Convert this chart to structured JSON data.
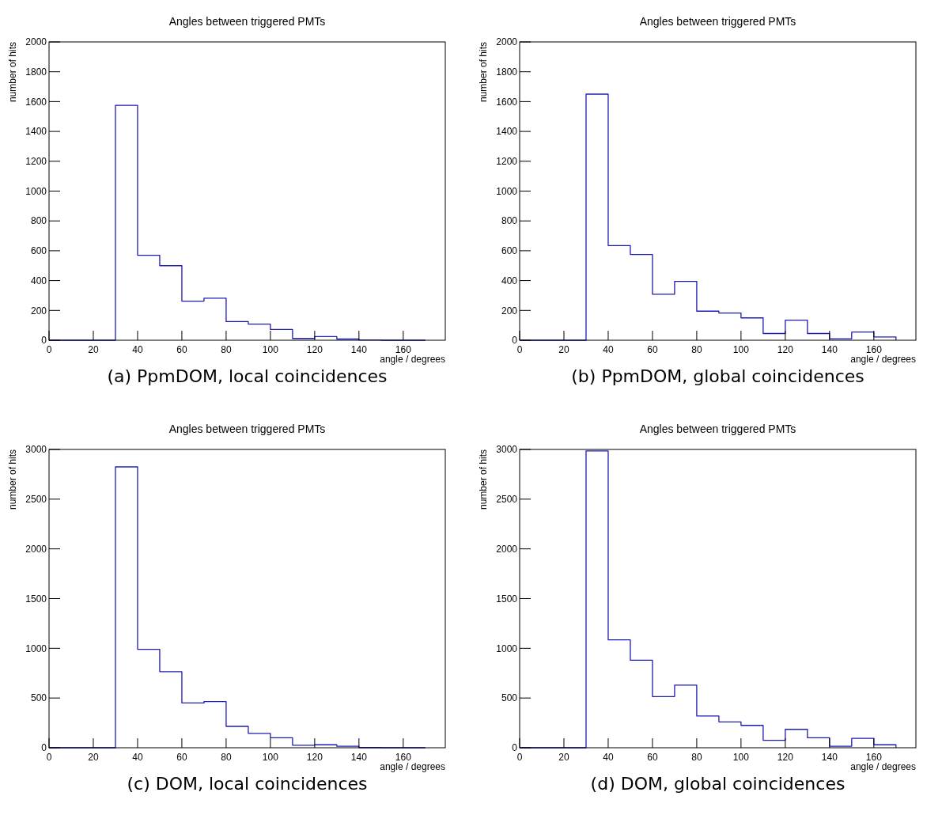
{
  "chart_data": [
    {
      "type": "histogram",
      "title": "Angles between triggered PMTs",
      "xlabel": "angle / degrees",
      "ylabel": "number of hits",
      "bins": [
        0,
        10,
        20,
        30,
        40,
        50,
        60,
        70,
        80,
        90,
        100,
        110,
        120,
        130,
        140,
        150,
        160,
        170
      ],
      "values": [
        0,
        0,
        0,
        1575,
        570,
        500,
        262,
        282,
        125,
        108,
        72,
        12,
        25,
        8,
        2,
        0,
        0
      ],
      "color": "#1c1cb4",
      "xlim": [
        0,
        179
      ],
      "xticks": [
        0,
        20,
        40,
        60,
        80,
        100,
        120,
        140,
        160
      ],
      "ylim": [
        0,
        2000
      ],
      "yticks": [
        0,
        200,
        400,
        600,
        800,
        1000,
        1200,
        1400,
        1600,
        1800,
        2000
      ],
      "grid": false,
      "annotations": [
        "(a) PpmDOM, local coincidences"
      ]
    },
    {
      "type": "histogram",
      "title": "Angles between triggered PMTs",
      "xlabel": "angle / degrees",
      "ylabel": "number of hits",
      "bins": [
        0,
        10,
        20,
        30,
        40,
        50,
        60,
        70,
        80,
        90,
        100,
        110,
        120,
        130,
        140,
        150,
        160,
        170
      ],
      "values": [
        0,
        0,
        0,
        1650,
        635,
        575,
        308,
        395,
        195,
        182,
        150,
        45,
        135,
        45,
        10,
        55,
        22
      ],
      "color": "#1c1cb4",
      "xlim": [
        0,
        179
      ],
      "xticks": [
        0,
        20,
        40,
        60,
        80,
        100,
        120,
        140,
        160
      ],
      "ylim": [
        0,
        2000
      ],
      "yticks": [
        0,
        200,
        400,
        600,
        800,
        1000,
        1200,
        1400,
        1600,
        1800,
        2000
      ],
      "grid": false,
      "annotations": [
        "(b) PpmDOM, global coincidences"
      ]
    },
    {
      "type": "histogram",
      "title": "Angles between triggered PMTs",
      "xlabel": "angle / degrees",
      "ylabel": "number of hits",
      "bins": [
        0,
        10,
        20,
        30,
        40,
        50,
        60,
        70,
        80,
        90,
        100,
        110,
        120,
        130,
        140,
        150,
        160,
        170
      ],
      "values": [
        0,
        0,
        0,
        2825,
        990,
        765,
        450,
        465,
        215,
        145,
        100,
        25,
        30,
        15,
        2,
        0,
        0
      ],
      "color": "#1c1cb4",
      "xlim": [
        0,
        179
      ],
      "xticks": [
        0,
        20,
        40,
        60,
        80,
        100,
        120,
        140,
        160
      ],
      "ylim": [
        0,
        3000
      ],
      "yticks": [
        0,
        500,
        1000,
        1500,
        2000,
        2500,
        3000
      ],
      "grid": false,
      "annotations": [
        "(c) DOM, local coincidences"
      ]
    },
    {
      "type": "histogram",
      "title": "Angles between triggered PMTs",
      "xlabel": "angle / degrees",
      "ylabel": "number of hits",
      "bins": [
        0,
        10,
        20,
        30,
        40,
        50,
        60,
        70,
        80,
        90,
        100,
        110,
        120,
        130,
        140,
        150,
        160,
        170
      ],
      "values": [
        0,
        0,
        0,
        2985,
        1085,
        880,
        515,
        630,
        320,
        260,
        225,
        75,
        185,
        100,
        15,
        95,
        30
      ],
      "color": "#1c1cb4",
      "xlim": [
        0,
        179
      ],
      "xticks": [
        0,
        20,
        40,
        60,
        80,
        100,
        120,
        140,
        160
      ],
      "ylim": [
        0,
        3000
      ],
      "yticks": [
        0,
        500,
        1000,
        1500,
        2000,
        2500,
        3000
      ],
      "grid": false,
      "annotations": [
        "(d) DOM, global coincidences"
      ]
    }
  ]
}
